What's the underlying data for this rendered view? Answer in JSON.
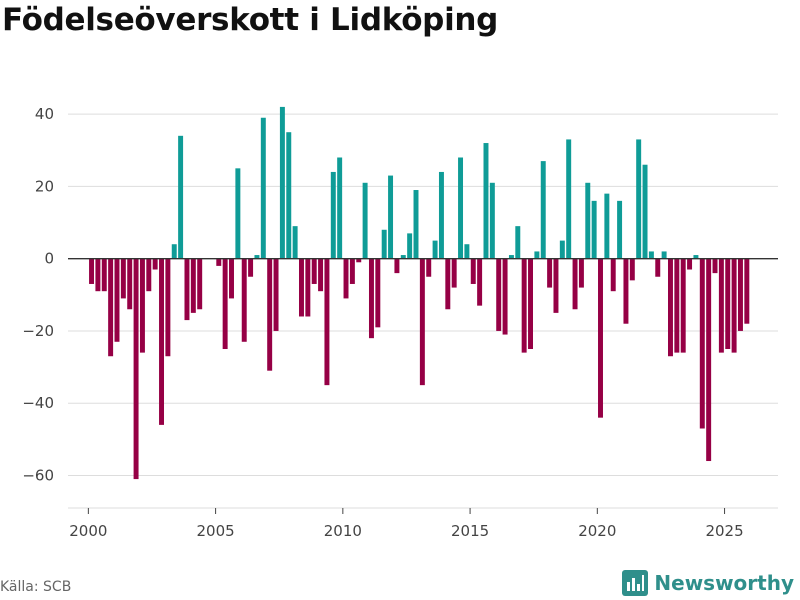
{
  "colors": {
    "positive": "#0f9c97",
    "negative": "#960045",
    "grid": "#dddddd",
    "axis": "#333333",
    "text": "#444444",
    "brand": "#2f8f8b"
  },
  "footer": {
    "source": "Källa: SCB",
    "brand": "Newsworthy",
    "brand_icon": "newsworthy-logo-icon"
  },
  "chart_data": {
    "type": "bar",
    "title": "Födelseöverskott i Lidköping",
    "xlabel": "",
    "ylabel": "",
    "xlim": [
      1999.2,
      2027.1
    ],
    "ylim": [
      -69,
      50
    ],
    "xticks": [
      2000,
      2005,
      2010,
      2015,
      2020,
      2025
    ],
    "yticks": [
      -60,
      -40,
      -20,
      0,
      20,
      40
    ],
    "grid": true,
    "x_start": 2000.125,
    "x_step": 0.25,
    "values": [
      -7,
      -9,
      -9,
      -27,
      -23,
      -11,
      -14,
      -61,
      -26,
      -9,
      -3,
      -46,
      -27,
      4,
      34,
      -17,
      -15,
      -14,
      0,
      0,
      -2,
      -25,
      -11,
      25,
      -23,
      -5,
      1,
      39,
      -31,
      -20,
      42,
      35,
      9,
      -16,
      -16,
      -7,
      -9,
      -35,
      24,
      28,
      -11,
      -7,
      -1,
      21,
      -22,
      -19,
      8,
      23,
      -4,
      1,
      7,
      19,
      -35,
      -5,
      5,
      24,
      -14,
      -8,
      28,
      4,
      -7,
      -13,
      32,
      21,
      -20,
      -21,
      1,
      9,
      -26,
      -25,
      2,
      27,
      -8,
      -15,
      5,
      33,
      -14,
      -8,
      21,
      16,
      -44,
      18,
      -9,
      16,
      -18,
      -6,
      33,
      26,
      2,
      -5,
      2,
      -27,
      -26,
      -26,
      -3,
      1,
      -47,
      -56,
      -4,
      -26,
      -25,
      -26,
      -20,
      -18
    ]
  }
}
